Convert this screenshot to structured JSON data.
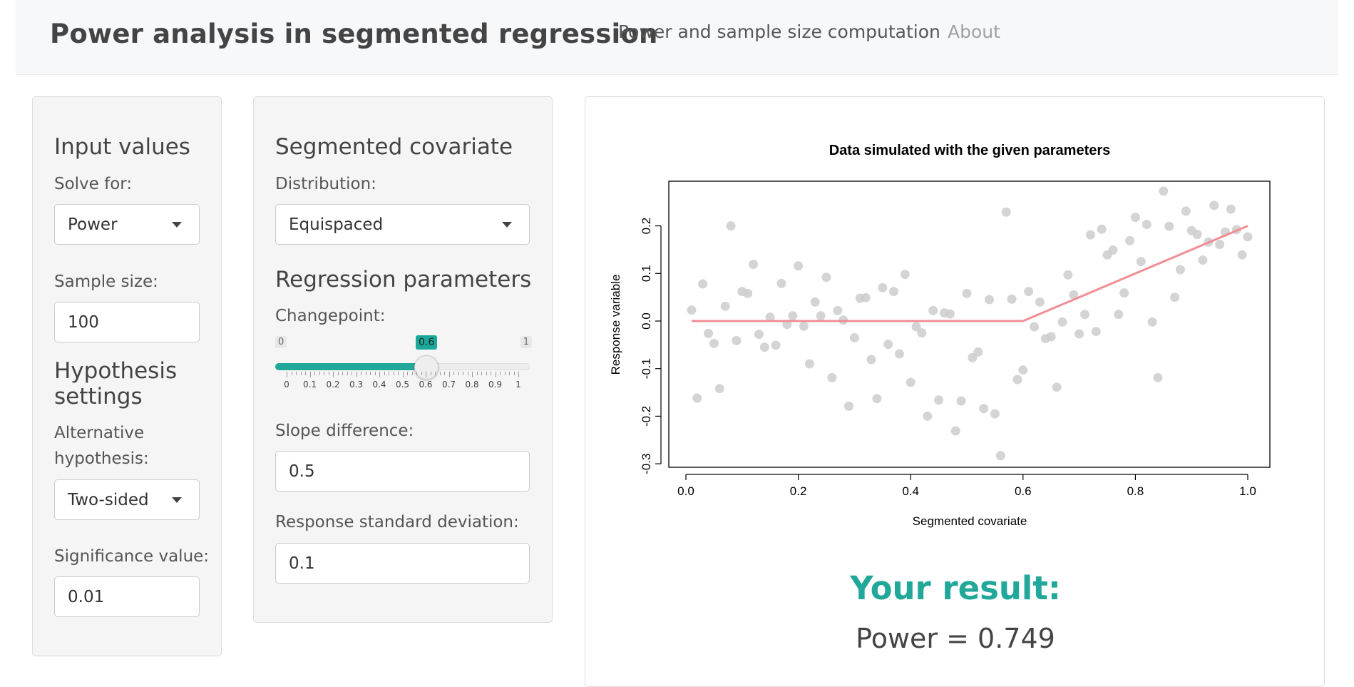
{
  "navbar": {
    "brand": "Power analysis in segmented regression",
    "links": [
      {
        "label": "Power and sample size computation"
      },
      {
        "label": "About"
      }
    ]
  },
  "input_panel": {
    "title": "Input values",
    "solve_for_label": "Solve for:",
    "solve_for_value": "Power",
    "sample_size_label": "Sample size:",
    "sample_size_value": "100",
    "hypothesis_title_line1": "Hypothesis",
    "hypothesis_title_line2": "settings",
    "alternative_label_line1": "Alternative",
    "alternative_label_line2": "hypothesis:",
    "alternative_value": "Two-sided",
    "significance_label": "Significance value:",
    "significance_value": "0.01"
  },
  "covariate_panel": {
    "title": "Segmented covariate",
    "distribution_label": "Distribution:",
    "distribution_value": "Equispaced",
    "regression_title": "Regression parameters",
    "changepoint_label": "Changepoint:",
    "changepoint": {
      "min_label": "0",
      "max_label": "1",
      "value_label": "0.6",
      "value": 0.6,
      "tick_labels": [
        "0",
        "0.1",
        "0.2",
        "0.3",
        "0.4",
        "0.5",
        "0.6",
        "0.7",
        "0.8",
        "0.9",
        "1"
      ]
    },
    "slope_label": "Slope difference:",
    "slope_value": "0.5",
    "sd_label": "Response standard deviation:",
    "sd_value": "0.1"
  },
  "result": {
    "title": "Your result:",
    "value_text": "Power = 0.749"
  },
  "chart_data": {
    "type": "scatter",
    "title": "Data simulated with the given parameters",
    "xlabel": "Segmented covariate",
    "ylabel": "Response variable",
    "xlim": [
      0.0,
      1.0
    ],
    "ylim": [
      -0.3,
      0.25
    ],
    "x_ticks": [
      "0.0",
      "0.2",
      "0.4",
      "0.6",
      "0.8",
      "1.0"
    ],
    "y_ticks": [
      "-0.3",
      "-0.2",
      "-0.1",
      "0.0",
      "0.1",
      "0.2"
    ],
    "point_color": "#cccccc",
    "line_color": "#f08e94",
    "points": [
      [
        0.01,
        0.023
      ],
      [
        0.02,
        -0.162
      ],
      [
        0.03,
        0.078
      ],
      [
        0.04,
        -0.026
      ],
      [
        0.05,
        -0.047
      ],
      [
        0.06,
        -0.142
      ],
      [
        0.07,
        0.031
      ],
      [
        0.08,
        0.2
      ],
      [
        0.09,
        -0.041
      ],
      [
        0.1,
        0.062
      ],
      [
        0.11,
        0.058
      ],
      [
        0.12,
        0.119
      ],
      [
        0.13,
        -0.028
      ],
      [
        0.14,
        -0.055
      ],
      [
        0.15,
        0.008
      ],
      [
        0.16,
        -0.051
      ],
      [
        0.17,
        0.079
      ],
      [
        0.18,
        -0.007
      ],
      [
        0.19,
        0.011
      ],
      [
        0.2,
        0.116
      ],
      [
        0.21,
        -0.011
      ],
      [
        0.22,
        -0.09
      ],
      [
        0.23,
        0.04
      ],
      [
        0.24,
        0.011
      ],
      [
        0.25,
        0.092
      ],
      [
        0.26,
        -0.119
      ],
      [
        0.27,
        0.022
      ],
      [
        0.28,
        0.002
      ],
      [
        0.29,
        -0.179
      ],
      [
        0.3,
        -0.035
      ],
      [
        0.31,
        0.048
      ],
      [
        0.32,
        0.049
      ],
      [
        0.33,
        -0.081
      ],
      [
        0.34,
        -0.163
      ],
      [
        0.35,
        0.07
      ],
      [
        0.36,
        -0.049
      ],
      [
        0.37,
        0.062
      ],
      [
        0.38,
        -0.069
      ],
      [
        0.39,
        0.098
      ],
      [
        0.4,
        -0.129
      ],
      [
        0.41,
        -0.012
      ],
      [
        0.42,
        -0.025
      ],
      [
        0.43,
        -0.2
      ],
      [
        0.44,
        0.022
      ],
      [
        0.45,
        -0.166
      ],
      [
        0.46,
        0.017
      ],
      [
        0.47,
        0.015
      ],
      [
        0.48,
        -0.231
      ],
      [
        0.49,
        -0.168
      ],
      [
        0.5,
        0.058
      ],
      [
        0.51,
        -0.077
      ],
      [
        0.52,
        -0.065
      ],
      [
        0.53,
        -0.184
      ],
      [
        0.54,
        0.045
      ],
      [
        0.55,
        -0.195
      ],
      [
        0.56,
        -0.283
      ],
      [
        0.57,
        0.229
      ],
      [
        0.58,
        0.046
      ],
      [
        0.59,
        -0.123
      ],
      [
        0.6,
        -0.103
      ],
      [
        0.61,
        0.062
      ],
      [
        0.62,
        -0.012
      ],
      [
        0.63,
        0.04
      ],
      [
        0.64,
        -0.037
      ],
      [
        0.65,
        -0.033
      ],
      [
        0.66,
        -0.139
      ],
      [
        0.67,
        -0.002
      ],
      [
        0.68,
        0.097
      ],
      [
        0.69,
        0.055
      ],
      [
        0.7,
        -0.027
      ],
      [
        0.71,
        0.014
      ],
      [
        0.72,
        0.181
      ],
      [
        0.73,
        -0.022
      ],
      [
        0.74,
        0.193
      ],
      [
        0.75,
        0.139
      ],
      [
        0.76,
        0.149
      ],
      [
        0.77,
        0.014
      ],
      [
        0.78,
        0.059
      ],
      [
        0.79,
        0.169
      ],
      [
        0.8,
        0.218
      ],
      [
        0.81,
        0.125
      ],
      [
        0.82,
        0.203
      ],
      [
        0.83,
        -0.002
      ],
      [
        0.84,
        -0.119
      ],
      [
        0.85,
        0.273
      ],
      [
        0.86,
        0.199
      ],
      [
        0.87,
        0.05
      ],
      [
        0.88,
        0.108
      ],
      [
        0.89,
        0.231
      ],
      [
        0.9,
        0.19
      ],
      [
        0.91,
        0.182
      ],
      [
        0.92,
        0.128
      ],
      [
        0.93,
        0.166
      ],
      [
        0.94,
        0.243
      ],
      [
        0.95,
        0.161
      ],
      [
        0.96,
        0.187
      ],
      [
        0.97,
        0.235
      ],
      [
        0.98,
        0.192
      ],
      [
        0.99,
        0.139
      ],
      [
        1.0,
        0.177
      ]
    ],
    "fit_line": [
      [
        0.01,
        0.0
      ],
      [
        0.6,
        0.0
      ],
      [
        1.0,
        0.2
      ]
    ]
  }
}
